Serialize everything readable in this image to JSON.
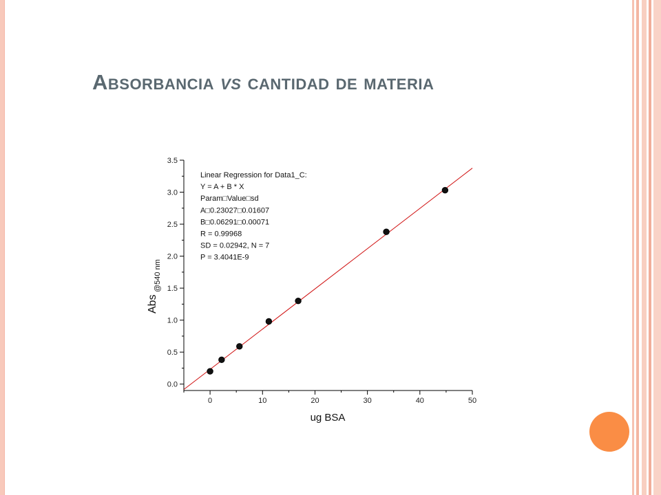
{
  "slide": {
    "title_main": "Absorbancia",
    "title_vs": "vs",
    "title_rest": "cantidad de materia"
  },
  "colors": {
    "accent_orange": "#fa8d45",
    "frame_pink": "#f8c9bb",
    "title_gray": "#5a6870",
    "fit_line": "#d01010"
  },
  "chart_data": {
    "type": "scatter",
    "xlabel": "ug BSA",
    "ylabel": "Abs",
    "ylabel_sub": "@540 nm",
    "xlim": [
      -5,
      50
    ],
    "ylim": [
      -0.1,
      3.5
    ],
    "x_ticks": [
      0,
      10,
      20,
      30,
      40,
      50
    ],
    "y_ticks": [
      0.0,
      0.5,
      1.0,
      1.5,
      2.0,
      2.5,
      3.0,
      3.5
    ],
    "series": [
      {
        "points": [
          {
            "x": 0,
            "y": 0.2
          },
          {
            "x": 2.2,
            "y": 0.38
          },
          {
            "x": 5.6,
            "y": 0.59
          },
          {
            "x": 11.2,
            "y": 0.98
          },
          {
            "x": 16.8,
            "y": 1.3
          },
          {
            "x": 33.6,
            "y": 2.38
          },
          {
            "x": 44.8,
            "y": 3.03
          }
        ]
      }
    ],
    "fit": {
      "intercept": 0.23027,
      "slope": 0.06291
    },
    "annotation_lines": [
      "Linear Regression for Data1_C:",
      "Y = A + B * X",
      "Param□Value□sd",
      "A□0.23027□0.01607",
      "B□0.06291□0.00071",
      "R  = 0.99968",
      "SD = 0.02942, N = 7",
      "P = 3.4041E-9"
    ]
  }
}
